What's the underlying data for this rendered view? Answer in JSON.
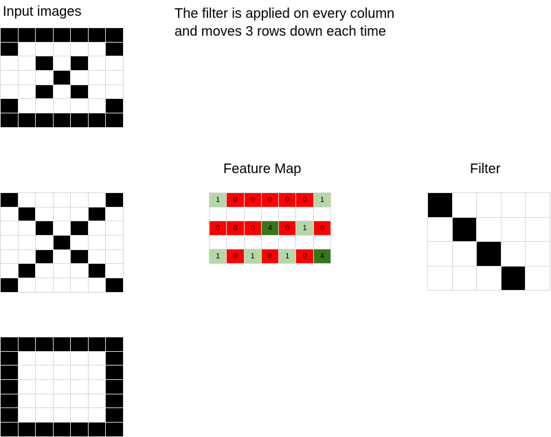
{
  "labels": {
    "input_images": "Input images",
    "note_line1": "The filter is applied on every column",
    "note_line2": "and moves 3 rows down each time",
    "feature_map": "Feature Map",
    "filter": "Filter"
  },
  "colors": {
    "black": "#000000",
    "white": "#ffffff",
    "red": "#ff0000",
    "light_green": "#b6d7a8",
    "dark_green": "#38761d",
    "gridline": "#d9d9d9"
  },
  "input_images": [
    {
      "name": "ring-with-x",
      "pixels": [
        [
          1,
          1,
          1,
          1,
          1,
          1,
          1
        ],
        [
          1,
          0,
          0,
          0,
          0,
          0,
          1
        ],
        [
          0,
          0,
          1,
          0,
          1,
          0,
          0
        ],
        [
          0,
          0,
          0,
          1,
          0,
          0,
          0
        ],
        [
          0,
          0,
          1,
          0,
          1,
          0,
          0
        ],
        [
          1,
          0,
          0,
          0,
          0,
          0,
          1
        ],
        [
          1,
          1,
          1,
          1,
          1,
          1,
          1
        ]
      ]
    },
    {
      "name": "x-shape",
      "pixels": [
        [
          1,
          0,
          0,
          0,
          0,
          0,
          1
        ],
        [
          0,
          1,
          0,
          0,
          0,
          1,
          0
        ],
        [
          0,
          0,
          1,
          0,
          1,
          0,
          0
        ],
        [
          0,
          0,
          0,
          1,
          0,
          0,
          0
        ],
        [
          0,
          0,
          1,
          0,
          1,
          0,
          0
        ],
        [
          0,
          1,
          0,
          0,
          0,
          1,
          0
        ],
        [
          1,
          0,
          0,
          0,
          0,
          0,
          1
        ]
      ]
    },
    {
      "name": "square-frame",
      "pixels": [
        [
          1,
          1,
          1,
          1,
          1,
          1,
          1
        ],
        [
          1,
          0,
          0,
          0,
          0,
          0,
          1
        ],
        [
          1,
          0,
          0,
          0,
          0,
          0,
          1
        ],
        [
          1,
          0,
          0,
          0,
          0,
          0,
          1
        ],
        [
          1,
          0,
          0,
          0,
          0,
          0,
          1
        ],
        [
          1,
          0,
          0,
          0,
          0,
          0,
          1
        ],
        [
          1,
          1,
          1,
          1,
          1,
          1,
          1
        ]
      ]
    }
  ],
  "feature_map": {
    "rows": [
      [
        "1",
        "0",
        "0",
        "0",
        "0",
        "0",
        "1"
      ],
      [
        "",
        "",
        "",
        "",
        "",
        "",
        ""
      ],
      [
        "0",
        "0",
        "0",
        "4",
        "0",
        "1",
        "0"
      ],
      [
        "",
        "",
        "",
        "",
        "",
        "",
        ""
      ],
      [
        "1",
        "0",
        "1",
        "0",
        "1",
        "0",
        "4"
      ]
    ],
    "colors": [
      [
        "light_green",
        "red",
        "red",
        "red",
        "red",
        "red",
        "light_green"
      ],
      [
        "white",
        "white",
        "white",
        "white",
        "white",
        "white",
        "white"
      ],
      [
        "red",
        "red",
        "red",
        "dark_green",
        "red",
        "light_green",
        "red"
      ],
      [
        "white",
        "white",
        "white",
        "white",
        "white",
        "white",
        "white"
      ],
      [
        "light_green",
        "red",
        "light_green",
        "red",
        "light_green",
        "red",
        "dark_green"
      ]
    ]
  },
  "filter": {
    "pixels": [
      [
        1,
        0,
        0,
        0,
        0
      ],
      [
        0,
        1,
        0,
        0,
        0
      ],
      [
        0,
        0,
        1,
        0,
        0
      ],
      [
        0,
        0,
        0,
        1,
        0
      ]
    ]
  }
}
